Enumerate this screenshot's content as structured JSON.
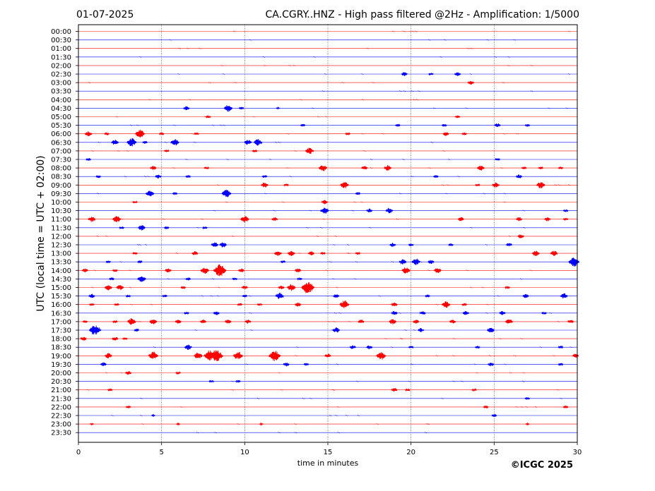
{
  "header": {
    "date": "01-07-2025",
    "title": "CA.CGRY..HNZ - High pass filtered @2Hz - Amplification: 1/5000"
  },
  "copyright": "©ICGC 2025",
  "chart_data": {
    "type": "line",
    "title": "CA.CGRY..HNZ - High pass filtered @2Hz - Amplification: 1/5000",
    "xlabel": "time in minutes",
    "ylabel": "UTC (local time = UTC + 02:00)",
    "xlim": [
      0,
      30
    ],
    "xticks": [
      0,
      5,
      10,
      15,
      20,
      25,
      30
    ],
    "grid_x": true,
    "trace_colors": [
      "#ff0000",
      "#0000ff"
    ],
    "rows": [
      {
        "label": "00:00",
        "color": "#ff0000",
        "events": []
      },
      {
        "label": "00:30",
        "color": "#0000ff",
        "events": []
      },
      {
        "label": "01:00",
        "color": "#ff0000",
        "events": []
      },
      {
        "label": "01:30",
        "color": "#0000ff",
        "events": []
      },
      {
        "label": "02:00",
        "color": "#ff0000",
        "events": []
      },
      {
        "label": "02:30",
        "color": "#0000ff",
        "events": [
          [
            19.6,
            3
          ],
          [
            21.2,
            2
          ],
          [
            22.8,
            3
          ]
        ]
      },
      {
        "label": "03:00",
        "color": "#ff0000",
        "events": [
          [
            23.6,
            3
          ]
        ]
      },
      {
        "label": "03:30",
        "color": "#0000ff",
        "events": []
      },
      {
        "label": "04:00",
        "color": "#ff0000",
        "events": []
      },
      {
        "label": "04:30",
        "color": "#0000ff",
        "events": [
          [
            6.5,
            3
          ],
          [
            9.0,
            5
          ],
          [
            9.8,
            2
          ],
          [
            12.0,
            1
          ]
        ]
      },
      {
        "label": "05:00",
        "color": "#ff0000",
        "events": [
          [
            7.8,
            2
          ],
          [
            22.8,
            2
          ]
        ]
      },
      {
        "label": "05:30",
        "color": "#0000ff",
        "events": [
          [
            13.5,
            2
          ],
          [
            19.2,
            2
          ],
          [
            22.0,
            2
          ],
          [
            25.2,
            3
          ],
          [
            27.0,
            2
          ]
        ]
      },
      {
        "label": "06:00",
        "color": "#ff0000",
        "events": [
          [
            0.6,
            4
          ],
          [
            1.7,
            2
          ],
          [
            3.7,
            6
          ],
          [
            5.0,
            2
          ],
          [
            7.1,
            2
          ],
          [
            16.2,
            2
          ],
          [
            22.1,
            3
          ],
          [
            23.2,
            2
          ]
        ]
      },
      {
        "label": "06:30",
        "color": "#0000ff",
        "events": [
          [
            2.2,
            4
          ],
          [
            3.2,
            6
          ],
          [
            4.0,
            2
          ],
          [
            5.8,
            5
          ],
          [
            10.2,
            4
          ],
          [
            10.8,
            5
          ]
        ]
      },
      {
        "label": "07:00",
        "color": "#ff0000",
        "events": [
          [
            5.3,
            2
          ],
          [
            10.6,
            2
          ],
          [
            13.9,
            5
          ]
        ]
      },
      {
        "label": "07:30",
        "color": "#0000ff",
        "events": [
          [
            0.6,
            2
          ],
          [
            25.2,
            2
          ]
        ]
      },
      {
        "label": "08:00",
        "color": "#ff0000",
        "events": [
          [
            4.5,
            3
          ],
          [
            7.7,
            2
          ],
          [
            14.7,
            5
          ],
          [
            17.2,
            3
          ],
          [
            18.6,
            4
          ],
          [
            24.2,
            4
          ],
          [
            26.8,
            2
          ],
          [
            27.8,
            2
          ],
          [
            29.0,
            2
          ]
        ]
      },
      {
        "label": "08:30",
        "color": "#0000ff",
        "events": [
          [
            1.2,
            2
          ],
          [
            4.8,
            3
          ],
          [
            6.6,
            2
          ],
          [
            11.2,
            2
          ],
          [
            21.5,
            2
          ],
          [
            26.5,
            3
          ]
        ]
      },
      {
        "label": "09:00",
        "color": "#ff0000",
        "events": [
          [
            11.2,
            4
          ],
          [
            12.5,
            2
          ],
          [
            16.0,
            5
          ],
          [
            24.0,
            2
          ],
          [
            25.1,
            4
          ],
          [
            27.8,
            5
          ]
        ]
      },
      {
        "label": "09:30",
        "color": "#0000ff",
        "events": [
          [
            4.3,
            5
          ],
          [
            5.8,
            2
          ],
          [
            8.9,
            6
          ],
          [
            16.8,
            2
          ]
        ]
      },
      {
        "label": "10:00",
        "color": "#ff0000",
        "events": [
          [
            3.4,
            2
          ],
          [
            14.8,
            3
          ]
        ]
      },
      {
        "label": "10:30",
        "color": "#0000ff",
        "events": [
          [
            14.8,
            5
          ],
          [
            17.5,
            3
          ],
          [
            18.7,
            4
          ],
          [
            29.3,
            2
          ]
        ]
      },
      {
        "label": "11:00",
        "color": "#ff0000",
        "events": [
          [
            0.8,
            4
          ],
          [
            2.3,
            5
          ],
          [
            10.0,
            5
          ],
          [
            11.8,
            3
          ],
          [
            23.0,
            3
          ],
          [
            26.5,
            3
          ],
          [
            28.2,
            3
          ],
          [
            29.3,
            2
          ]
        ]
      },
      {
        "label": "11:30",
        "color": "#0000ff",
        "events": [
          [
            2.6,
            2
          ],
          [
            3.8,
            4
          ],
          [
            5.3,
            2
          ],
          [
            7.6,
            2
          ]
        ]
      },
      {
        "label": "12:00",
        "color": "#ff0000",
        "events": [
          [
            26.6,
            3
          ]
        ]
      },
      {
        "label": "12:30",
        "color": "#0000ff",
        "events": [
          [
            8.2,
            4
          ],
          [
            8.7,
            4
          ],
          [
            18.9,
            3
          ],
          [
            20.0,
            2
          ],
          [
            22.4,
            2
          ],
          [
            25.9,
            3
          ]
        ]
      },
      {
        "label": "13:00",
        "color": "#ff0000",
        "events": [
          [
            3.4,
            2
          ],
          [
            7.0,
            3
          ],
          [
            12.0,
            4
          ],
          [
            12.8,
            4
          ],
          [
            14.0,
            3
          ],
          [
            14.7,
            2
          ],
          [
            16.8,
            2
          ],
          [
            27.5,
            4
          ],
          [
            28.6,
            4
          ]
        ]
      },
      {
        "label": "13:30",
        "color": "#0000ff",
        "events": [
          [
            1.8,
            2
          ],
          [
            3.7,
            2
          ],
          [
            12.3,
            2
          ],
          [
            19.5,
            4
          ],
          [
            20.3,
            5
          ],
          [
            21.2,
            3
          ],
          [
            29.8,
            7
          ]
        ]
      },
      {
        "label": "14:00",
        "color": "#ff0000",
        "events": [
          [
            0.4,
            3
          ],
          [
            2.2,
            2
          ],
          [
            5.4,
            3
          ],
          [
            7.6,
            5
          ],
          [
            8.5,
            9
          ],
          [
            9.8,
            3
          ],
          [
            13.2,
            3
          ],
          [
            19.7,
            5
          ],
          [
            21.6,
            4
          ]
        ]
      },
      {
        "label": "14:30",
        "color": "#0000ff",
        "events": [
          [
            2.0,
            2
          ],
          [
            3.8,
            5
          ],
          [
            6.6,
            2
          ],
          [
            9.4,
            2
          ],
          [
            13.3,
            2
          ]
        ]
      },
      {
        "label": "15:00",
        "color": "#ff0000",
        "events": [
          [
            1.8,
            4
          ],
          [
            2.5,
            4
          ],
          [
            6.3,
            2
          ],
          [
            10.0,
            3
          ],
          [
            12.2,
            3
          ],
          [
            12.8,
            5
          ],
          [
            13.8,
            9
          ],
          [
            25.8,
            2
          ]
        ]
      },
      {
        "label": "15:30",
        "color": "#0000ff",
        "events": [
          [
            0.8,
            3
          ],
          [
            3.0,
            2
          ],
          [
            5.2,
            2
          ],
          [
            10.0,
            2
          ],
          [
            12.1,
            5
          ],
          [
            15.5,
            3
          ],
          [
            21.0,
            2
          ],
          [
            26.9,
            3
          ],
          [
            29.2,
            4
          ]
        ]
      },
      {
        "label": "16:00",
        "color": "#ff0000",
        "events": [
          [
            0.8,
            2
          ],
          [
            2.3,
            2
          ],
          [
            9.7,
            2
          ],
          [
            10.9,
            2
          ],
          [
            13.2,
            3
          ],
          [
            16.0,
            6
          ],
          [
            19.0,
            3
          ],
          [
            22.1,
            5
          ],
          [
            23.2,
            2
          ]
        ]
      },
      {
        "label": "16:30",
        "color": "#0000ff",
        "events": [
          [
            6.5,
            2
          ],
          [
            8.3,
            3
          ],
          [
            19.0,
            3
          ],
          [
            20.7,
            3
          ],
          [
            23.3,
            3
          ],
          [
            25.5,
            3
          ],
          [
            28.0,
            2
          ]
        ]
      },
      {
        "label": "17:00",
        "color": "#ff0000",
        "events": [
          [
            0.4,
            2
          ],
          [
            2.2,
            2
          ],
          [
            3.2,
            5
          ],
          [
            4.5,
            4
          ],
          [
            6.0,
            3
          ],
          [
            7.5,
            3
          ],
          [
            9.0,
            3
          ],
          [
            10.2,
            3
          ],
          [
            17.0,
            3
          ],
          [
            18.9,
            4
          ],
          [
            20.3,
            3
          ],
          [
            22.5,
            3
          ],
          [
            25.9,
            4
          ],
          [
            29.6,
            3
          ]
        ]
      },
      {
        "label": "17:30",
        "color": "#0000ff",
        "events": [
          [
            1.0,
            8
          ],
          [
            3.5,
            2
          ],
          [
            15.5,
            4
          ],
          [
            20.6,
            3
          ],
          [
            24.8,
            4
          ]
        ]
      },
      {
        "label": "18:00",
        "color": "#ff0000",
        "events": [
          [
            0.3,
            3
          ],
          [
            2.2,
            3
          ],
          [
            2.8,
            2
          ]
        ]
      },
      {
        "label": "18:30",
        "color": "#0000ff",
        "events": [
          [
            6.6,
            4
          ],
          [
            16.5,
            3
          ],
          [
            17.5,
            3
          ],
          [
            20.0,
            2
          ],
          [
            24.0,
            2
          ],
          [
            29.0,
            2
          ]
        ]
      },
      {
        "label": "19:00",
        "color": "#ff0000",
        "events": [
          [
            1.8,
            4
          ],
          [
            4.5,
            6
          ],
          [
            7.2,
            5
          ],
          [
            7.9,
            8
          ],
          [
            8.3,
            9
          ],
          [
            9.6,
            6
          ],
          [
            11.8,
            8
          ],
          [
            15.0,
            3
          ],
          [
            18.2,
            6
          ],
          [
            29.9,
            3
          ]
        ]
      },
      {
        "label": "19:30",
        "color": "#0000ff",
        "events": [
          [
            1.5,
            3
          ],
          [
            12.5,
            3
          ],
          [
            13.7,
            2
          ],
          [
            24.8,
            3
          ],
          [
            29.0,
            2
          ]
        ]
      },
      {
        "label": "20:00",
        "color": "#ff0000",
        "events": [
          [
            3.0,
            3
          ],
          [
            6.0,
            2
          ]
        ]
      },
      {
        "label": "20:30",
        "color": "#0000ff",
        "events": [
          [
            8.0,
            2
          ],
          [
            9.6,
            2
          ]
        ]
      },
      {
        "label": "21:00",
        "color": "#ff0000",
        "events": [
          [
            1.9,
            2
          ],
          [
            19.0,
            3
          ],
          [
            19.8,
            2
          ],
          [
            23.8,
            2
          ]
        ]
      },
      {
        "label": "21:30",
        "color": "#0000ff",
        "events": [
          [
            27.0,
            2
          ]
        ]
      },
      {
        "label": "22:00",
        "color": "#ff0000",
        "events": [
          [
            3.0,
            2
          ],
          [
            24.5,
            2
          ],
          [
            29.3,
            2
          ]
        ]
      },
      {
        "label": "22:30",
        "color": "#0000ff",
        "events": [
          [
            4.5,
            1
          ],
          [
            25.0,
            2
          ]
        ]
      },
      {
        "label": "23:00",
        "color": "#ff0000",
        "events": [
          [
            0.8,
            1
          ],
          [
            6.0,
            1
          ],
          [
            11.0,
            1
          ],
          [
            27.0,
            1
          ]
        ]
      },
      {
        "label": "23:30",
        "color": "#0000ff",
        "events": []
      }
    ]
  }
}
